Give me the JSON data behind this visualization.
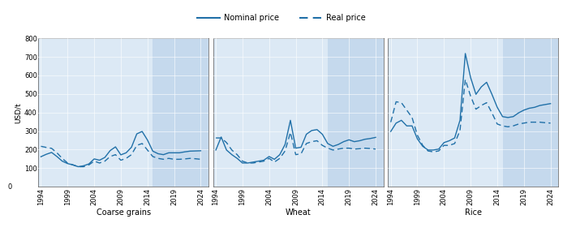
{
  "title_legend_nominal": "Nominal price",
  "title_legend_real": "Real price",
  "ylabel": "USD/t",
  "ylim": [
    0,
    800
  ],
  "yticks": [
    0,
    100,
    200,
    300,
    400,
    500,
    600,
    700,
    800
  ],
  "background_light": "#dce9f5",
  "background_forecast": "#c5d9ed",
  "line_color": "#2070a8",
  "header_bg": "#e0e0e0",
  "panels": [
    "Coarse grains",
    "Wheat",
    "Rice"
  ],
  "forecast_start": 2015,
  "xmin": 1993.5,
  "xmax": 2025.5,
  "xticks": [
    1994,
    1999,
    2004,
    2009,
    2014,
    2019,
    2024
  ],
  "coarse_nominal_x": [
    1994,
    1995,
    1996,
    1997,
    1998,
    1999,
    2000,
    2001,
    2002,
    2003,
    2004,
    2005,
    2006,
    2007,
    2008,
    2009,
    2010,
    2011,
    2012,
    2013,
    2014,
    2015,
    2016,
    2017,
    2018,
    2019,
    2020,
    2021,
    2022,
    2023,
    2024
  ],
  "coarse_nominal_y": [
    162,
    175,
    185,
    163,
    138,
    125,
    118,
    108,
    113,
    123,
    150,
    143,
    158,
    195,
    215,
    172,
    183,
    213,
    285,
    298,
    252,
    192,
    178,
    173,
    183,
    183,
    183,
    188,
    192,
    193,
    194
  ],
  "coarse_real_x": [
    1994,
    1995,
    1996,
    1997,
    1998,
    1999,
    2000,
    2001,
    2002,
    2003,
    2004,
    2005,
    2006,
    2007,
    2008,
    2009,
    2010,
    2011,
    2012,
    2013,
    2014,
    2015,
    2016,
    2017,
    2018,
    2019,
    2020,
    2021,
    2022,
    2023,
    2024
  ],
  "coarse_real_y": [
    218,
    212,
    207,
    183,
    153,
    128,
    118,
    108,
    108,
    118,
    138,
    128,
    138,
    163,
    173,
    143,
    153,
    173,
    223,
    233,
    198,
    163,
    153,
    148,
    153,
    148,
    148,
    150,
    153,
    151,
    148
  ],
  "wheat_nominal_x": [
    1994,
    1995,
    1996,
    1997,
    1998,
    1999,
    2000,
    2001,
    2002,
    2003,
    2004,
    2005,
    2006,
    2007,
    2008,
    2009,
    2010,
    2011,
    2012,
    2013,
    2014,
    2015,
    2016,
    2017,
    2018,
    2019,
    2020,
    2021,
    2022,
    2023,
    2024
  ],
  "wheat_nominal_y": [
    198,
    268,
    198,
    173,
    153,
    128,
    128,
    133,
    138,
    143,
    163,
    148,
    173,
    228,
    358,
    208,
    213,
    283,
    303,
    308,
    283,
    233,
    218,
    228,
    243,
    253,
    243,
    248,
    256,
    260,
    266
  ],
  "wheat_real_x": [
    1994,
    1995,
    1996,
    1997,
    1998,
    1999,
    2000,
    2001,
    2002,
    2003,
    2004,
    2005,
    2006,
    2007,
    2008,
    2009,
    2010,
    2011,
    2012,
    2013,
    2014,
    2015,
    2016,
    2017,
    2018,
    2019,
    2020,
    2021,
    2022,
    2023,
    2024
  ],
  "wheat_real_y": [
    263,
    263,
    238,
    198,
    173,
    138,
    128,
    128,
    133,
    138,
    153,
    133,
    153,
    193,
    293,
    173,
    178,
    233,
    243,
    248,
    223,
    208,
    198,
    203,
    208,
    208,
    203,
    205,
    208,
    206,
    203
  ],
  "rice_nominal_x": [
    1994,
    1995,
    1996,
    1997,
    1998,
    1999,
    2000,
    2001,
    2002,
    2003,
    2004,
    2005,
    2006,
    2007,
    2008,
    2009,
    2010,
    2011,
    2012,
    2013,
    2014,
    2015,
    2016,
    2017,
    2018,
    2019,
    2020,
    2021,
    2022,
    2023,
    2024
  ],
  "rice_nominal_y": [
    298,
    343,
    358,
    328,
    328,
    258,
    218,
    198,
    198,
    203,
    238,
    248,
    263,
    358,
    718,
    588,
    498,
    538,
    563,
    498,
    428,
    378,
    373,
    378,
    398,
    413,
    423,
    428,
    438,
    443,
    448
  ],
  "rice_real_x": [
    1994,
    1995,
    1996,
    1997,
    1998,
    1999,
    2000,
    2001,
    2002,
    2003,
    2004,
    2005,
    2006,
    2007,
    2008,
    2009,
    2010,
    2011,
    2012,
    2013,
    2014,
    2015,
    2016,
    2017,
    2018,
    2019,
    2020,
    2021,
    2022,
    2023,
    2024
  ],
  "rice_real_y": [
    348,
    458,
    453,
    413,
    373,
    278,
    223,
    193,
    188,
    193,
    223,
    223,
    233,
    303,
    578,
    488,
    418,
    438,
    453,
    398,
    338,
    328,
    323,
    328,
    338,
    343,
    348,
    348,
    348,
    345,
    343
  ]
}
